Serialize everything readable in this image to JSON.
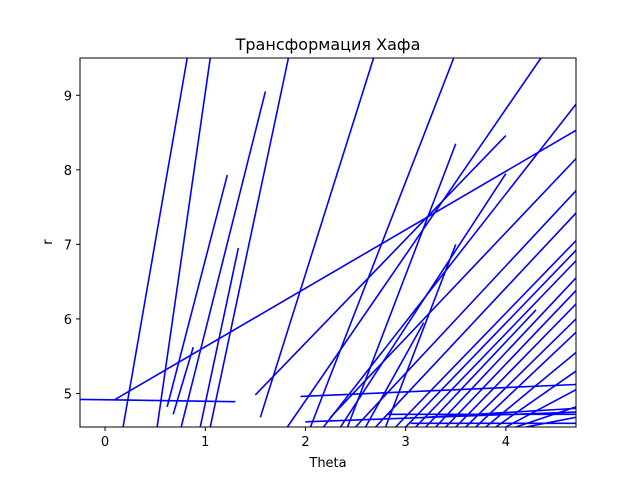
{
  "chart_data": {
    "type": "line",
    "title": "Трансформация Хафа",
    "xlabel": "Theta",
    "ylabel": "r",
    "xlim": [
      -0.25,
      4.7
    ],
    "ylim": [
      4.55,
      9.5
    ],
    "xticks": [
      0,
      1,
      2,
      3,
      4
    ],
    "yticks": [
      5,
      6,
      7,
      8,
      9
    ],
    "grid": false,
    "legend": "none",
    "line_color": "#0000ff",
    "segments": [
      [
        [
          -0.25,
          4.92
        ],
        [
          1.3,
          4.89
        ]
      ],
      [
        [
          0.1,
          4.92
        ],
        [
          4.7,
          8.53
        ]
      ],
      [
        [
          0.18,
          4.55
        ],
        [
          0.82,
          9.5
        ]
      ],
      [
        [
          0.52,
          4.55
        ],
        [
          1.05,
          9.5
        ]
      ],
      [
        [
          0.62,
          4.82
        ],
        [
          1.22,
          7.93
        ]
      ],
      [
        [
          0.68,
          4.72
        ],
        [
          0.88,
          5.62
        ]
      ],
      [
        [
          0.76,
          4.55
        ],
        [
          1.6,
          9.05
        ]
      ],
      [
        [
          0.95,
          4.55
        ],
        [
          1.33,
          6.95
        ]
      ],
      [
        [
          1.05,
          4.55
        ],
        [
          1.83,
          9.5
        ]
      ],
      [
        [
          1.5,
          4.98
        ],
        [
          4.0,
          8.46
        ]
      ],
      [
        [
          1.55,
          4.68
        ],
        [
          2.68,
          9.5
        ]
      ],
      [
        [
          1.82,
          4.55
        ],
        [
          4.35,
          9.5
        ]
      ],
      [
        [
          1.95,
          4.96
        ],
        [
          4.7,
          5.12
        ]
      ],
      [
        [
          2.05,
          4.55
        ],
        [
          3.48,
          9.5
        ]
      ],
      [
        [
          2.18,
          4.55
        ],
        [
          4.7,
          8.88
        ]
      ],
      [
        [
          2.25,
          4.68
        ],
        [
          4.7,
          8.15
        ]
      ],
      [
        [
          2.35,
          4.55
        ],
        [
          4.0,
          7.95
        ]
      ],
      [
        [
          2.42,
          4.55
        ],
        [
          3.5,
          8.35
        ]
      ],
      [
        [
          2.5,
          4.55
        ],
        [
          4.7,
          7.72
        ]
      ],
      [
        [
          2.6,
          4.55
        ],
        [
          3.18,
          5.95
        ]
      ],
      [
        [
          2.7,
          4.55
        ],
        [
          4.7,
          7.42
        ]
      ],
      [
        [
          2.8,
          4.55
        ],
        [
          3.5,
          7.0
        ]
      ],
      [
        [
          2.82,
          4.72
        ],
        [
          4.7,
          4.72
        ]
      ],
      [
        [
          2.9,
          4.55
        ],
        [
          4.7,
          7.05
        ]
      ],
      [
        [
          3.0,
          4.55
        ],
        [
          4.7,
          6.92
        ]
      ],
      [
        [
          3.05,
          4.6
        ],
        [
          4.7,
          4.6
        ]
      ],
      [
        [
          3.1,
          4.55
        ],
        [
          4.7,
          6.78
        ]
      ],
      [
        [
          3.2,
          4.55
        ],
        [
          4.3,
          6.12
        ]
      ],
      [
        [
          3.3,
          4.55
        ],
        [
          4.7,
          6.55
        ]
      ],
      [
        [
          3.4,
          4.55
        ],
        [
          4.7,
          6.38
        ]
      ],
      [
        [
          3.5,
          4.55
        ],
        [
          4.7,
          6.2
        ]
      ],
      [
        [
          3.6,
          4.55
        ],
        [
          4.7,
          6.0
        ]
      ],
      [
        [
          3.7,
          4.55
        ],
        [
          4.7,
          5.82
        ]
      ],
      [
        [
          3.8,
          4.55
        ],
        [
          4.7,
          5.55
        ]
      ],
      [
        [
          3.9,
          4.55
        ],
        [
          4.7,
          5.3
        ]
      ],
      [
        [
          4.0,
          4.55
        ],
        [
          4.7,
          5.05
        ]
      ],
      [
        [
          4.1,
          4.55
        ],
        [
          4.7,
          4.82
        ]
      ],
      [
        [
          4.2,
          4.55
        ],
        [
          4.7,
          4.68
        ]
      ],
      [
        [
          3.2,
          4.68
        ],
        [
          4.7,
          4.8
        ]
      ],
      [
        [
          2.0,
          4.62
        ],
        [
          4.7,
          4.75
        ]
      ]
    ]
  }
}
